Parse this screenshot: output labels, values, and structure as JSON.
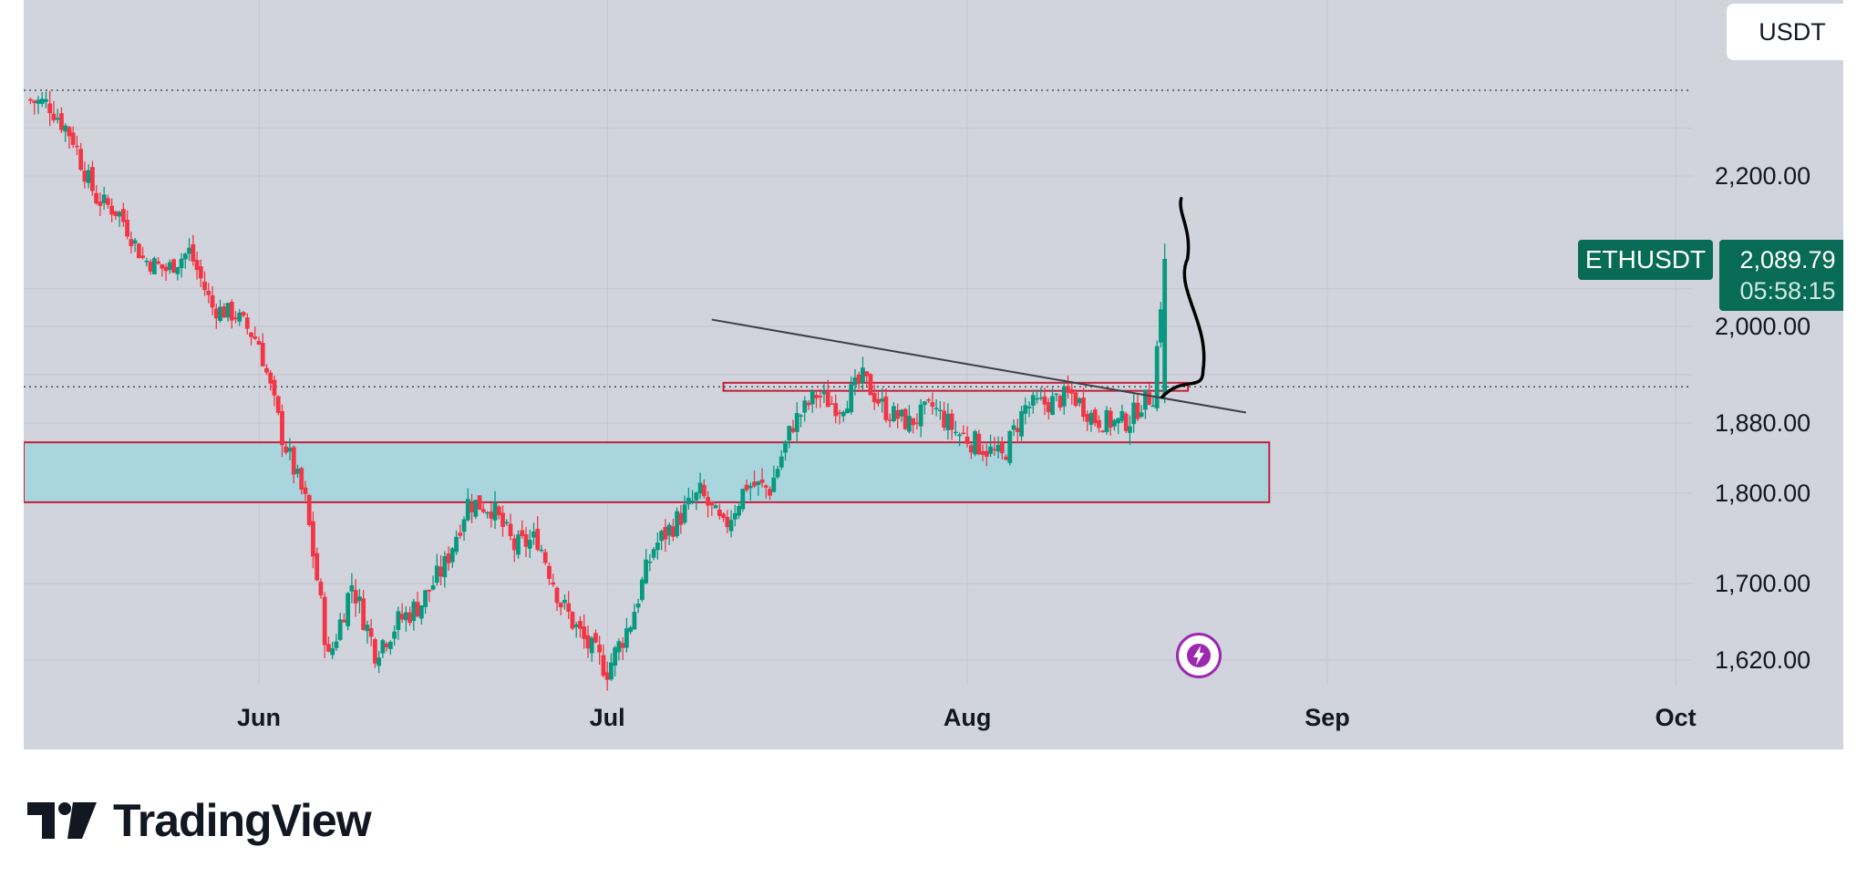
{
  "toolbar": {
    "currency_label": "USDT"
  },
  "symbol": {
    "name": "ETHUSDT",
    "last_price": "2,089.79",
    "countdown": "05:58:15"
  },
  "brand": {
    "name": "TradingView"
  },
  "icons": {
    "alert": "lightning-bolt-icon",
    "logo": "tradingview-logo-icon"
  },
  "colors": {
    "up": "#089981",
    "down": "#f23645",
    "zone_fill": "#a9d6de",
    "zone_border": "#c2213a",
    "tag_bg": "#086b55",
    "bolt": "#9c27b0"
  },
  "chart_data": {
    "type": "candlestick",
    "symbol": "ETHUSDT",
    "y_ticks": [
      "2,200.00",
      "2,000.00",
      "1,880.00",
      "1,800.00",
      "1,700.00",
      "1,620.00"
    ],
    "y_tick_values": [
      2200,
      2000,
      1880,
      1800,
      1700,
      1620
    ],
    "x_ticks": [
      "Jun",
      "Jul",
      "Aug",
      "Sep",
      "Oct"
    ],
    "x_tick_dates": [
      "2023-06-01",
      "2023-07-01",
      "2023-08-01",
      "2023-09-01",
      "2023-10-01"
    ],
    "x_range": [
      "2023-05-12",
      "2023-10-01"
    ],
    "ylim": [
      1600,
      2325
    ],
    "grid": true,
    "closes": [
      [
        "2023-05-12",
        2280
      ],
      [
        "2023-05-14",
        2275
      ],
      [
        "2023-05-16",
        2240
      ],
      [
        "2023-05-18",
        2170
      ],
      [
        "2023-05-20",
        2150
      ],
      [
        "2023-05-22",
        2090
      ],
      [
        "2023-05-24",
        2075
      ],
      [
        "2023-05-26",
        2100
      ],
      [
        "2023-05-28",
        2025
      ],
      [
        "2023-05-30",
        2015
      ],
      [
        "2023-06-01",
        1980
      ],
      [
        "2023-06-03",
        1865
      ],
      [
        "2023-06-05",
        1790
      ],
      [
        "2023-06-07",
        1620
      ],
      [
        "2023-06-09",
        1700
      ],
      [
        "2023-06-11",
        1630
      ],
      [
        "2023-06-13",
        1660
      ],
      [
        "2023-06-15",
        1680
      ],
      [
        "2023-06-17",
        1720
      ],
      [
        "2023-06-19",
        1790
      ],
      [
        "2023-06-21",
        1785
      ],
      [
        "2023-06-23",
        1740
      ],
      [
        "2023-06-25",
        1750
      ],
      [
        "2023-06-27",
        1680
      ],
      [
        "2023-06-29",
        1640
      ],
      [
        "2023-07-01",
        1610
      ],
      [
        "2023-07-03",
        1660
      ],
      [
        "2023-07-05",
        1740
      ],
      [
        "2023-07-07",
        1770
      ],
      [
        "2023-07-09",
        1800
      ],
      [
        "2023-07-11",
        1760
      ],
      [
        "2023-07-13",
        1810
      ],
      [
        "2023-07-15",
        1805
      ],
      [
        "2023-07-17",
        1880
      ],
      [
        "2023-07-19",
        1915
      ],
      [
        "2023-07-21",
        1900
      ],
      [
        "2023-07-23",
        1935
      ],
      [
        "2023-07-25",
        1895
      ],
      [
        "2023-07-27",
        1880
      ],
      [
        "2023-07-29",
        1900
      ],
      [
        "2023-07-31",
        1870
      ],
      [
        "2023-08-02",
        1855
      ],
      [
        "2023-08-04",
        1840
      ],
      [
        "2023-08-06",
        1900
      ],
      [
        "2023-08-08",
        1905
      ],
      [
        "2023-08-10",
        1915
      ],
      [
        "2023-08-12",
        1885
      ],
      [
        "2023-08-14",
        1880
      ],
      [
        "2023-08-15",
        1885
      ],
      [
        "2023-08-16",
        1905
      ],
      [
        "2023-08-17",
        1915
      ],
      [
        "2023-08-18",
        2089.79
      ]
    ],
    "annotations": [
      {
        "type": "rectangle",
        "label": "demand zone",
        "y_range": [
          1790,
          1858
        ]
      },
      {
        "type": "rectangle",
        "label": "resistance box",
        "y_range": [
          1920,
          1930
        ]
      },
      {
        "type": "trendline",
        "label": "descending trendline"
      },
      {
        "type": "horizontal_dotted_line",
        "value": 2290
      },
      {
        "type": "horizontal_dotted_line",
        "value": 1925
      },
      {
        "type": "hand_drawn_arrow",
        "label": "projected move up"
      }
    ]
  }
}
